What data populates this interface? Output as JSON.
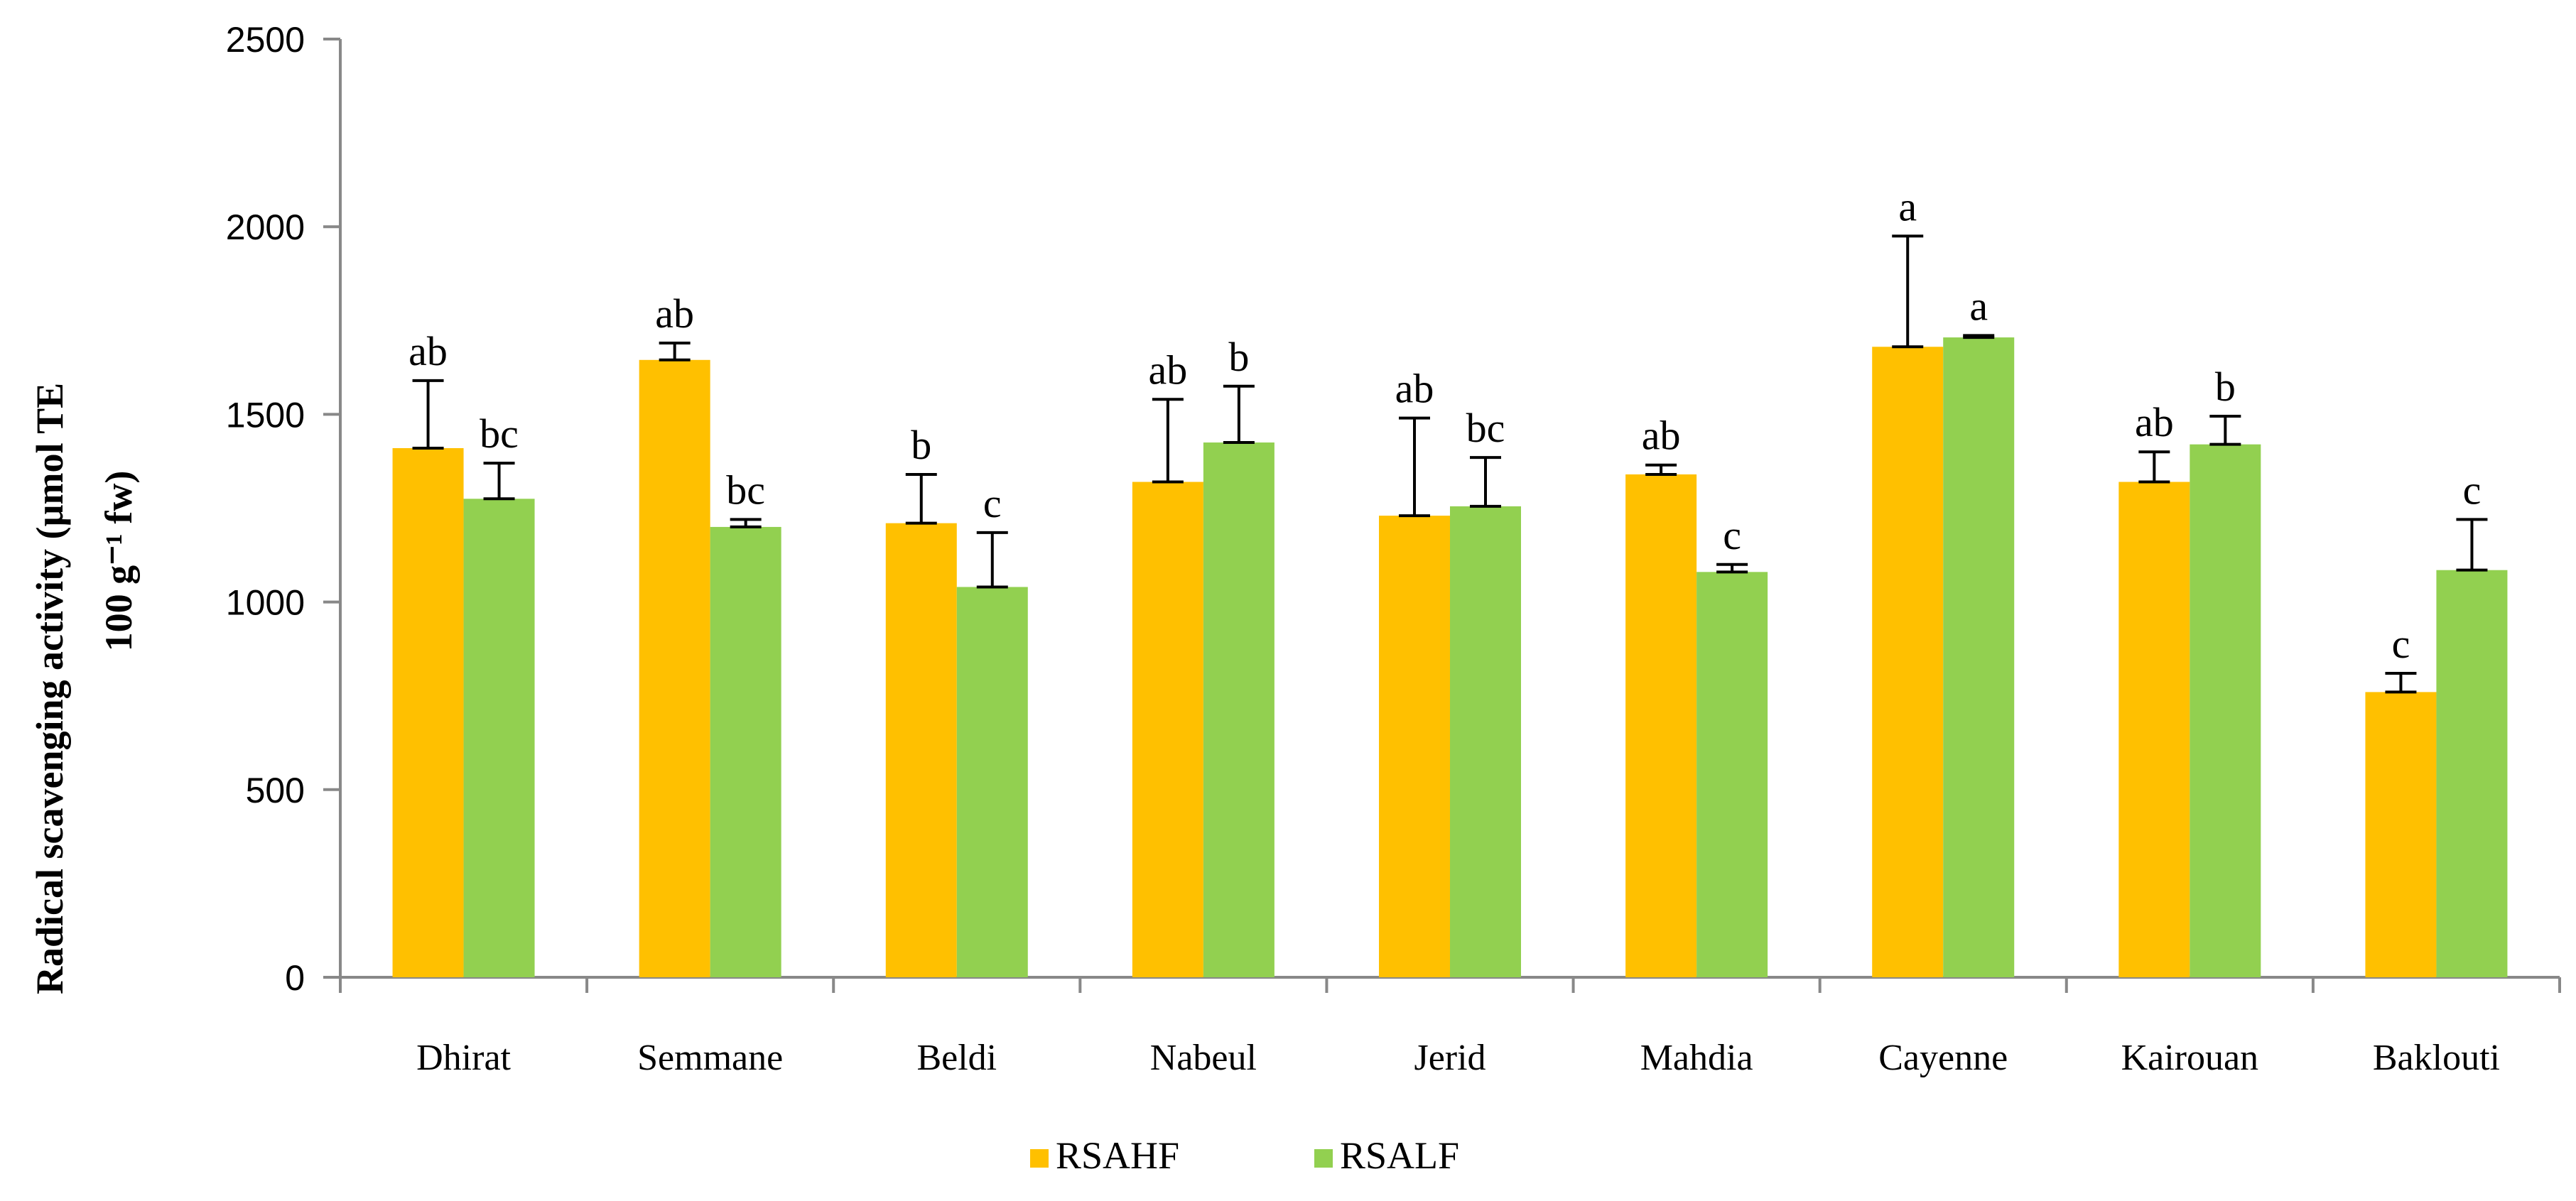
{
  "chart_data": {
    "type": "bar",
    "title": "",
    "xlabel": "",
    "ylabel_line1": "Radical scavenging activity (µmol TE",
    "ylabel_line2": "100 g⁻¹ fw)",
    "ylim": [
      0,
      2500
    ],
    "yticks": [
      0,
      500,
      1000,
      1500,
      2000,
      2500
    ],
    "grid": false,
    "legend_position": "bottom",
    "categories": [
      "Dhirat",
      "Semmane",
      "Beldi",
      "Nabeul",
      "Jerid",
      "Mahdia",
      "Cayenne",
      "Kairouan",
      "Baklouti"
    ],
    "series": [
      {
        "name": "RSAHF",
        "color": "#FFC000",
        "values": [
          1410,
          1645,
          1210,
          1320,
          1230,
          1340,
          1680,
          1320,
          760
        ],
        "error": [
          180,
          45,
          130,
          220,
          260,
          25,
          295,
          80,
          50
        ],
        "letters": [
          "ab",
          "ab",
          "b",
          "ab",
          "ab",
          "ab",
          "a",
          "ab",
          "c"
        ]
      },
      {
        "name": "RSALF",
        "color": "#92D050",
        "values": [
          1275,
          1200,
          1040,
          1425,
          1255,
          1080,
          1705,
          1420,
          1085
        ],
        "error": [
          95,
          20,
          145,
          150,
          130,
          20,
          5,
          75,
          135
        ],
        "letters": [
          "bc",
          "bc",
          "c",
          "b",
          "bc",
          "c",
          "a",
          "b",
          "c"
        ]
      }
    ]
  }
}
